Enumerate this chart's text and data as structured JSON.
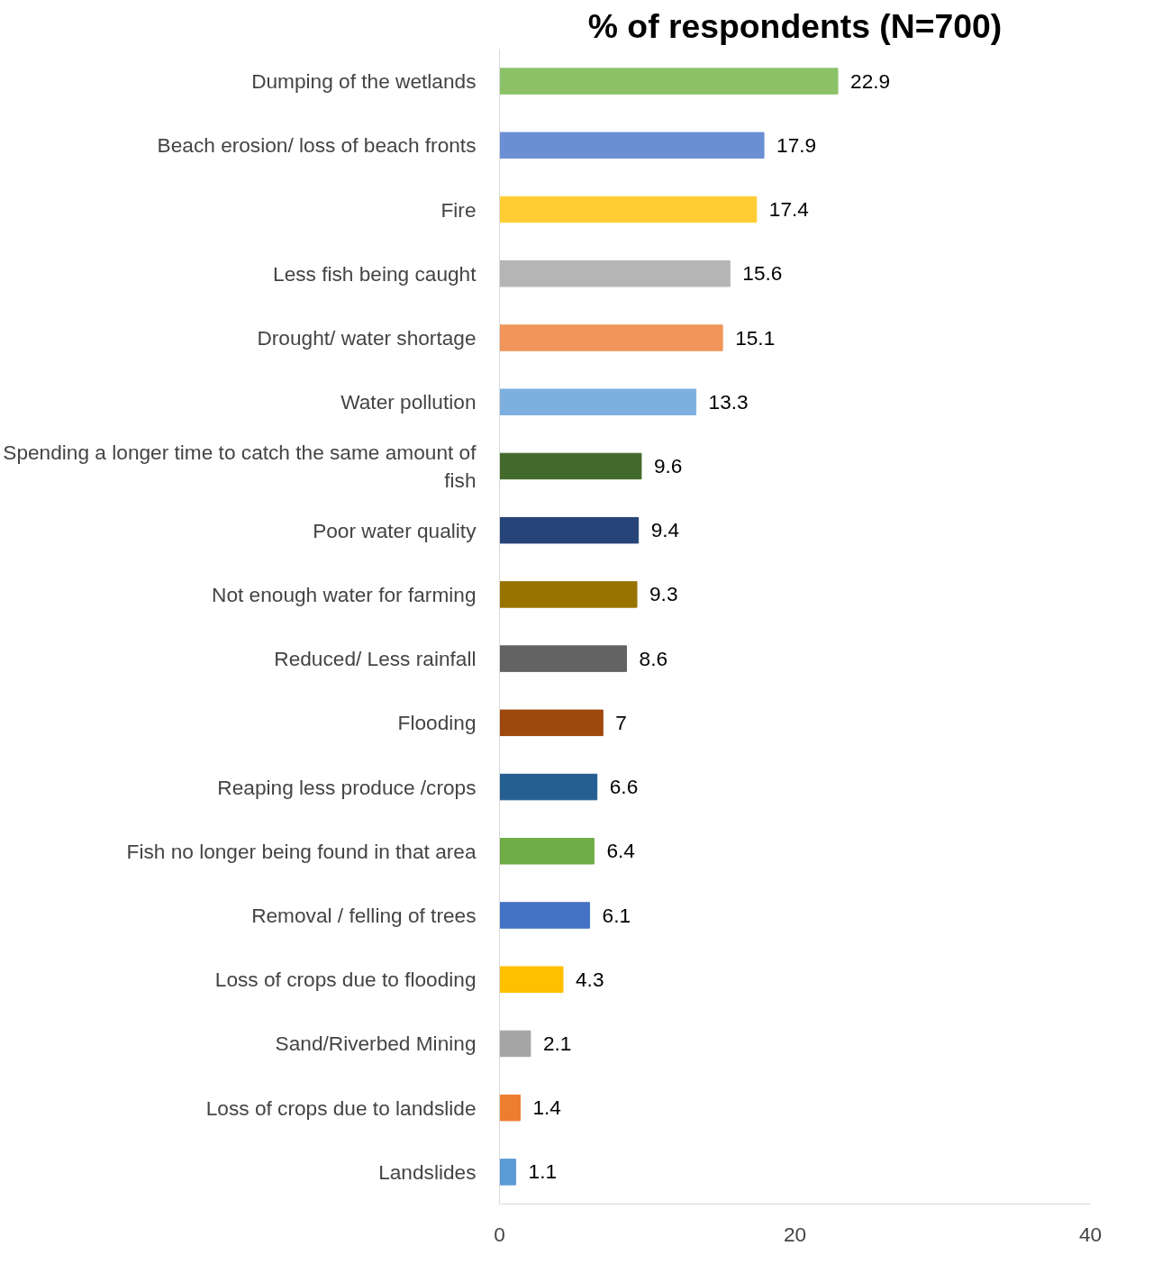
{
  "chart_data": {
    "type": "bar",
    "orientation": "horizontal",
    "title": "% of respondents (N=700)",
    "categories": [
      "Dumping of the wetlands",
      "Beach erosion/ loss of beach fronts",
      "Fire",
      "Less fish being caught",
      "Drought/ water shortage",
      "Water pollution",
      "Spending a longer time to catch the same amount of fish",
      "Poor water quality",
      "Not enough water for farming",
      "Reduced/ Less rainfall",
      "Flooding",
      "Reaping less produce /crops",
      "Fish no longer being found in that area",
      "Removal / felling of trees",
      "Loss of crops due to flooding",
      "Sand/Riverbed Mining",
      "Loss of crops due to landslide",
      "Landslides"
    ],
    "values": [
      22.9,
      17.9,
      17.4,
      15.6,
      15.1,
      13.3,
      9.6,
      9.4,
      9.3,
      8.6,
      7,
      6.6,
      6.4,
      6.1,
      4.3,
      2.1,
      1.4,
      1.1
    ],
    "colors": [
      "#8cc168",
      "#6a8fd4",
      "#ffcd33",
      "#b5b5b5",
      "#f0965a",
      "#7eb0df",
      "#436a2b",
      "#264478",
      "#987300",
      "#636363",
      "#9e480e",
      "#255e91",
      "#70ad47",
      "#4472c4",
      "#ffc000",
      "#a5a5a5",
      "#ed7d31",
      "#5b9bd5"
    ],
    "xlim": [
      0,
      40
    ],
    "xticks": [
      0,
      20,
      40
    ],
    "data_labels": true,
    "grid": false
  }
}
